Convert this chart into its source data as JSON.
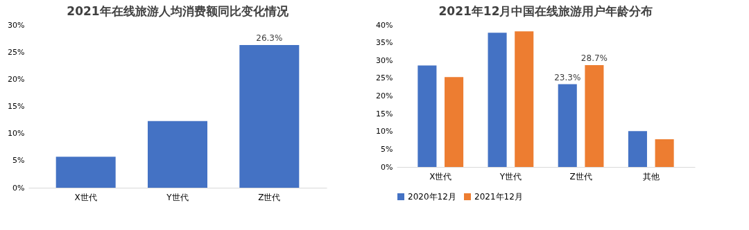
{
  "chart_data": [
    {
      "type": "bar",
      "title": "2021年在线旅游人均消费额同比变化情况",
      "categories": [
        "X世代",
        "Y世代",
        "Z世代"
      ],
      "values": [
        5.7,
        12.3,
        26.3
      ],
      "color": "#4472c4",
      "value_labels": [
        null,
        null,
        "26.3%"
      ],
      "ylim": [
        0,
        30
      ],
      "yticks": [
        {
          "value": 0,
          "label": "0%"
        },
        {
          "value": 5,
          "label": "5%"
        },
        {
          "value": 10,
          "label": "10%"
        },
        {
          "value": 15,
          "label": "15%"
        },
        {
          "value": 20,
          "label": "20%"
        },
        {
          "value": 25,
          "label": "25%"
        },
        {
          "value": 30,
          "label": "30%"
        }
      ],
      "grid": false,
      "legend": false
    },
    {
      "type": "bar",
      "title": "2021年12月中国在线旅游用户年龄分布",
      "categories": [
        "X世代",
        "Y世代",
        "Z世代",
        "其他"
      ],
      "series": [
        {
          "name": "2020年12月",
          "color": "#4472c4",
          "values": [
            28.6,
            37.8,
            23.3,
            10.1
          ],
          "value_labels": [
            null,
            null,
            "23.3%",
            null
          ]
        },
        {
          "name": "2021年12月",
          "color": "#ed7d31",
          "values": [
            25.3,
            38.2,
            28.7,
            7.8
          ],
          "value_labels": [
            null,
            null,
            "28.7%",
            null
          ]
        }
      ],
      "ylim": [
        0,
        40
      ],
      "yticks": [
        {
          "value": 0,
          "label": "0%"
        },
        {
          "value": 5,
          "label": "5%"
        },
        {
          "value": 10,
          "label": "10%"
        },
        {
          "value": 15,
          "label": "15%"
        },
        {
          "value": 20,
          "label": "20%"
        },
        {
          "value": 25,
          "label": "25%"
        },
        {
          "value": 30,
          "label": "30%"
        },
        {
          "value": 35,
          "label": "35%"
        },
        {
          "value": 40,
          "label": "40%"
        }
      ],
      "grid": false,
      "legend": "bottom"
    }
  ]
}
